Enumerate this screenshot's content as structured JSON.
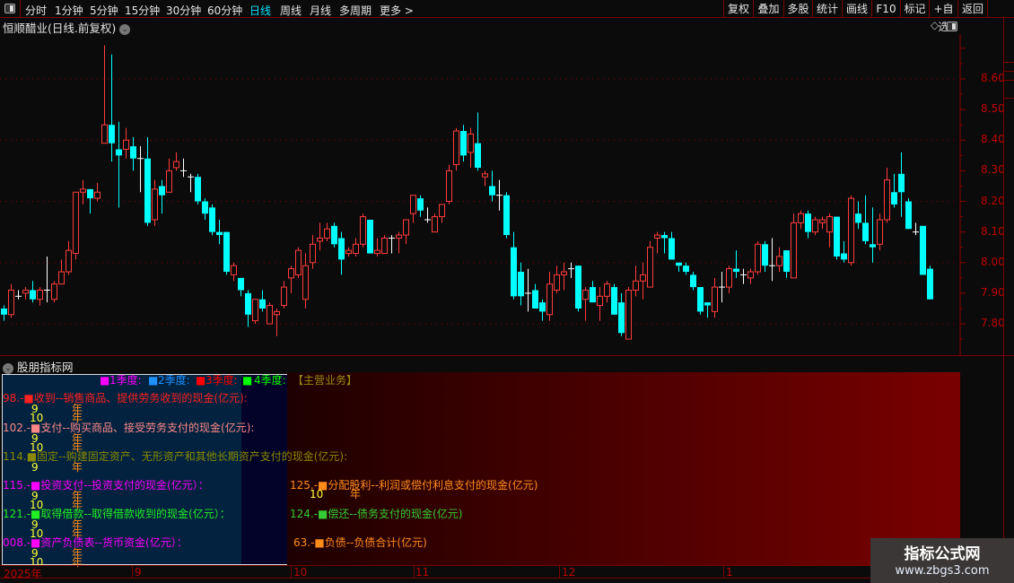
{
  "toolbar": {
    "periods": [
      "分时",
      "1分钟",
      "5分钟",
      "15分钟",
      "30分钟",
      "60分钟",
      "日线",
      "周线",
      "月线",
      "多周期",
      "更多 >"
    ],
    "active_period": "日线",
    "buttons": [
      "复权",
      "叠加",
      "多股",
      "统计",
      "画线",
      "F10",
      "标记",
      "+自选",
      "返回"
    ]
  },
  "chart": {
    "title": "恒顺醋业(日线.前复权)",
    "y_ticks": [
      "8.60",
      "8.50",
      "8.40",
      "8.30",
      "8.20",
      "8.10",
      "8.00",
      "7.90",
      "7.80"
    ],
    "colors": {
      "up": "#ff3b3b",
      "down": "#00ffff",
      "flat": "#ffffff",
      "grid": "#8b0000"
    },
    "kline_ohlc_note_fields": [
      "open",
      "close",
      "high",
      "low"
    ],
    "kline": [
      [
        7.85,
        7.83,
        7.86,
        7.81
      ],
      [
        7.83,
        7.91,
        7.93,
        7.82
      ],
      [
        7.89,
        7.89,
        7.91,
        7.88
      ],
      [
        7.9,
        7.91,
        7.92,
        7.88
      ],
      [
        7.91,
        7.88,
        7.94,
        7.87
      ],
      [
        7.88,
        7.91,
        7.92,
        7.86
      ],
      [
        7.91,
        7.91,
        8.02,
        7.87
      ],
      [
        7.88,
        7.93,
        7.94,
        7.87
      ],
      [
        7.93,
        7.97,
        8.01,
        7.93
      ],
      [
        7.97,
        8.04,
        8.07,
        7.96
      ],
      [
        8.03,
        8.23,
        8.23,
        8.01
      ],
      [
        8.23,
        8.24,
        8.27,
        8.19
      ],
      [
        8.24,
        8.21,
        8.24,
        8.16
      ],
      [
        8.21,
        8.23,
        8.26,
        8.2
      ],
      [
        8.39,
        8.45,
        8.71,
        8.39
      ],
      [
        8.45,
        8.39,
        8.68,
        8.33
      ],
      [
        8.37,
        8.35,
        8.46,
        8.18
      ],
      [
        8.37,
        8.4,
        8.44,
        8.34
      ],
      [
        8.38,
        8.34,
        8.41,
        8.3
      ],
      [
        8.34,
        8.34,
        8.38,
        8.23
      ],
      [
        8.34,
        8.13,
        8.41,
        8.12
      ],
      [
        8.14,
        8.24,
        8.27,
        8.12
      ],
      [
        8.25,
        8.22,
        8.27,
        8.16
      ],
      [
        8.23,
        8.3,
        8.34,
        8.23
      ],
      [
        8.31,
        8.33,
        8.36,
        8.3
      ],
      [
        8.3,
        8.3,
        8.34,
        8.28
      ],
      [
        8.28,
        8.28,
        8.29,
        8.23
      ],
      [
        8.28,
        8.2,
        8.29,
        8.19
      ],
      [
        8.2,
        8.16,
        8.21,
        8.14
      ],
      [
        8.18,
        8.1,
        8.19,
        8.09
      ],
      [
        8.1,
        8.09,
        8.14,
        8.06
      ],
      [
        8.1,
        7.97,
        8.1,
        7.96
      ],
      [
        7.96,
        7.99,
        8.0,
        7.94
      ],
      [
        7.95,
        7.91,
        7.95,
        7.89
      ],
      [
        7.9,
        7.83,
        7.91,
        7.79
      ],
      [
        7.81,
        7.88,
        7.88,
        7.8
      ],
      [
        7.88,
        7.85,
        7.91,
        7.84
      ],
      [
        7.8,
        7.86,
        7.87,
        7.8
      ],
      [
        7.83,
        7.84,
        7.85,
        7.76
      ],
      [
        7.86,
        7.92,
        7.94,
        7.85
      ],
      [
        7.95,
        7.98,
        7.99,
        7.9
      ],
      [
        7.96,
        8.04,
        8.05,
        7.95
      ],
      [
        7.88,
        7.99,
        8.03,
        7.85
      ],
      [
        8.0,
        8.06,
        8.09,
        7.98
      ],
      [
        8.07,
        8.08,
        8.13,
        8.04
      ],
      [
        8.08,
        8.11,
        8.13,
        8.07
      ],
      [
        8.12,
        8.06,
        8.13,
        8.05
      ],
      [
        8.08,
        8.01,
        8.1,
        7.96
      ],
      [
        8.03,
        8.04,
        8.05,
        8.02
      ],
      [
        8.03,
        8.06,
        8.08,
        8.02
      ],
      [
        8.06,
        8.15,
        8.16,
        8.05
      ],
      [
        8.14,
        8.03,
        8.14,
        8.03
      ],
      [
        8.03,
        8.04,
        8.08,
        8.02
      ],
      [
        8.03,
        8.08,
        8.09,
        8.03
      ],
      [
        8.08,
        8.08,
        8.09,
        8.03
      ],
      [
        8.08,
        8.09,
        8.1,
        8.03
      ],
      [
        8.09,
        8.14,
        8.14,
        8.06
      ],
      [
        8.16,
        8.22,
        8.22,
        8.13
      ],
      [
        8.21,
        8.17,
        8.22,
        8.15
      ],
      [
        8.14,
        8.14,
        8.18,
        8.13
      ],
      [
        8.1,
        8.15,
        8.16,
        8.1
      ],
      [
        8.15,
        8.19,
        8.19,
        8.13
      ],
      [
        8.2,
        8.3,
        8.32,
        8.19
      ],
      [
        8.32,
        8.43,
        8.44,
        8.3
      ],
      [
        8.43,
        8.35,
        8.45,
        8.33
      ],
      [
        8.36,
        8.42,
        8.44,
        8.31
      ],
      [
        8.39,
        8.31,
        8.49,
        8.3
      ],
      [
        8.28,
        8.29,
        8.3,
        8.25
      ],
      [
        8.25,
        8.22,
        8.3,
        8.2
      ],
      [
        8.22,
        8.22,
        8.27,
        8.17
      ],
      [
        8.22,
        8.09,
        8.23,
        8.08
      ],
      [
        8.05,
        7.89,
        8.1,
        7.88
      ],
      [
        7.97,
        7.89,
        8.0,
        7.86
      ],
      [
        7.9,
        7.9,
        7.98,
        7.84
      ],
      [
        7.91,
        7.85,
        7.93,
        7.85
      ],
      [
        7.87,
        7.84,
        7.88,
        7.81
      ],
      [
        7.83,
        7.93,
        7.97,
        7.81
      ],
      [
        7.91,
        7.96,
        7.99,
        7.9
      ],
      [
        7.96,
        7.97,
        8.0,
        7.91
      ],
      [
        7.98,
        7.98,
        8.0,
        7.95
      ],
      [
        7.99,
        7.85,
        7.99,
        7.84
      ],
      [
        7.88,
        7.91,
        7.92,
        7.81
      ],
      [
        7.92,
        7.87,
        7.94,
        7.87
      ],
      [
        7.86,
        7.89,
        7.92,
        7.81
      ],
      [
        7.89,
        7.93,
        7.94,
        7.87
      ],
      [
        7.92,
        7.83,
        7.93,
        7.83
      ],
      [
        7.87,
        7.77,
        7.9,
        7.76
      ],
      [
        7.75,
        7.91,
        7.92,
        7.75
      ],
      [
        7.91,
        7.94,
        7.99,
        7.89
      ],
      [
        7.94,
        7.96,
        8.0,
        7.88
      ],
      [
        7.92,
        8.05,
        8.07,
        7.92
      ],
      [
        8.08,
        8.09,
        8.1,
        8.03
      ],
      [
        8.09,
        8.08,
        8.1,
        8.03
      ],
      [
        8.08,
        8.01,
        8.1,
        8.01
      ],
      [
        8.0,
        7.99,
        8.0,
        7.97
      ],
      [
        7.99,
        7.97,
        8.0,
        7.96
      ],
      [
        7.96,
        7.92,
        7.97,
        7.91
      ],
      [
        7.92,
        7.84,
        7.92,
        7.83
      ],
      [
        7.87,
        7.86,
        7.87,
        7.82
      ],
      [
        7.84,
        7.92,
        7.95,
        7.82
      ],
      [
        7.92,
        7.92,
        7.97,
        7.87
      ],
      [
        7.92,
        7.98,
        7.99,
        7.9
      ],
      [
        7.98,
        7.97,
        8.04,
        7.95
      ],
      [
        7.96,
        7.96,
        7.98,
        7.93
      ],
      [
        7.95,
        7.97,
        7.98,
        7.93
      ],
      [
        7.97,
        8.06,
        8.07,
        7.96
      ],
      [
        8.06,
        7.99,
        8.07,
        7.97
      ],
      [
        7.99,
        7.99,
        8.08,
        7.94
      ],
      [
        7.99,
        8.02,
        8.05,
        7.97
      ],
      [
        8.04,
        7.97,
        8.04,
        7.95
      ],
      [
        7.95,
        8.13,
        8.16,
        7.95
      ],
      [
        8.13,
        8.16,
        8.17,
        8.11
      ],
      [
        8.16,
        8.1,
        8.17,
        8.08
      ],
      [
        8.1,
        8.14,
        8.15,
        8.09
      ],
      [
        8.13,
        8.14,
        8.15,
        8.11
      ],
      [
        8.1,
        8.15,
        8.16,
        8.05
      ],
      [
        8.15,
        8.02,
        8.15,
        8.01
      ],
      [
        8.03,
        8.01,
        8.07,
        8.0
      ],
      [
        8.0,
        8.21,
        8.22,
        7.99
      ],
      [
        8.16,
        8.13,
        8.2,
        8.11
      ],
      [
        8.13,
        8.07,
        8.22,
        8.06
      ],
      [
        8.06,
        8.05,
        8.18,
        8.0
      ],
      [
        8.06,
        8.14,
        8.16,
        8.04
      ],
      [
        8.14,
        8.27,
        8.31,
        8.13
      ],
      [
        8.23,
        8.19,
        8.29,
        8.18
      ],
      [
        8.29,
        8.23,
        8.36,
        8.15
      ],
      [
        8.2,
        8.11,
        8.21,
        8.11
      ],
      [
        8.1,
        8.1,
        8.13,
        8.09
      ],
      [
        8.12,
        7.96,
        8.12,
        7.96
      ],
      [
        7.98,
        7.88,
        7.99,
        7.88
      ]
    ]
  },
  "indicator": {
    "title": "股朋指标网",
    "legend": [
      {
        "label": "1季度:",
        "color": "#ff00ff"
      },
      {
        "label": "2季度:",
        "color": "#1e90ff"
      },
      {
        "label": "3季度:",
        "color": "#ff0000"
      },
      {
        "label": "4季度:",
        "color": "#00ff00"
      }
    ],
    "section": "【主营业务】",
    "year_unit": "年",
    "rows": [
      {
        "text": "98.-■收到--销售商品、提供劳务收到的现金(亿元):",
        "color": "#ff2020"
      },
      {
        "text": "102.-■支付--购买商品、接受劳务支付的现金(亿元):",
        "color": "#ff8888"
      },
      {
        "text": "114.■固定--购建固定资产、无形资产和其他长期资产支付的现金(亿元):",
        "color": "#8a8a00"
      },
      {
        "text": "115.-■投资支付--投资支付的现金(亿元）：",
        "color": "#ff00ff"
      },
      {
        "text": "121.-■取得借款--取得借款收到的现金(亿元）：",
        "color": "#22ee22"
      },
      {
        "text": "008.-■资产负债表--货币资金(亿元）：",
        "color": "#ff00ff"
      }
    ],
    "months": [
      "9",
      "10"
    ],
    "right_rows": [
      {
        "text": "125.-■分配股利--利润或偿付利息支付的现金(亿元)",
        "color": "#ff8c1a",
        "month": "10"
      },
      {
        "text": "124.-■偿还--债务支付的现金(亿元)",
        "color": "#33cc33"
      },
      {
        "text": "63.-■负债--负债合计(亿元)",
        "color": "#ff8c1a"
      }
    ]
  },
  "time_axis": [
    "2025年",
    "9",
    "10",
    "11",
    "12",
    "1"
  ],
  "watermark": {
    "name": "指标公式网",
    "url": "www.zbgs3.com"
  }
}
